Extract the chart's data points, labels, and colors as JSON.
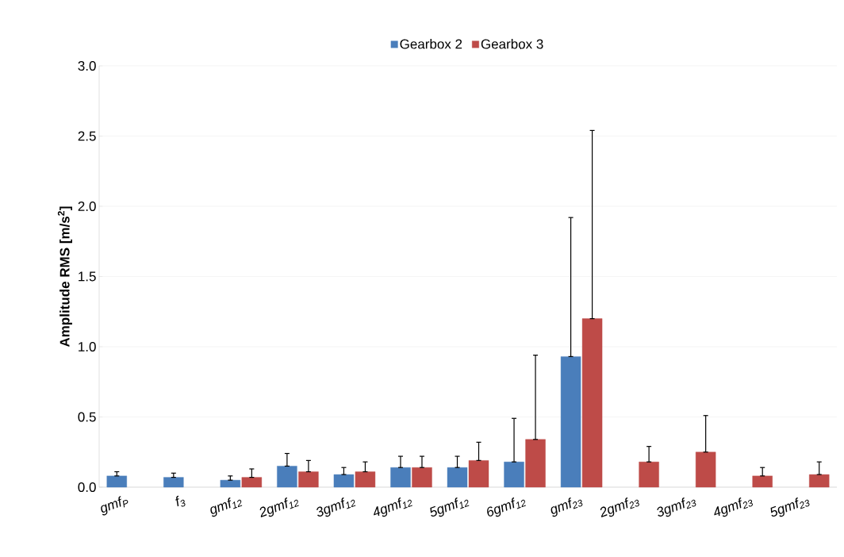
{
  "chart_data": {
    "type": "bar",
    "ylabel": "Amplitude RMS [m/s$^{2}$]",
    "categories": [
      "gmf$_{P}$",
      "f$_{3}$",
      "gmf$_{12}$",
      "2gmf$_{12}$",
      "3gmf$_{12}$",
      "4gmf$_{12}$",
      "5gmf$_{12}$",
      "6gmf$_{12}$",
      "gmf$_{23}$",
      "2gmf$_{23}$",
      "3gmf$_{23}$",
      "4gmf$_{23}$",
      "5gmf$_{23}$"
    ],
    "series": [
      {
        "name": "Gearbox 2",
        "color": "#4a7ebb",
        "values": [
          0.08,
          0.07,
          0.05,
          0.15,
          0.09,
          0.14,
          0.14,
          0.18,
          0.93,
          null,
          null,
          null,
          null
        ],
        "errors": [
          [
            0.08,
            0.11
          ],
          [
            0.07,
            0.1
          ],
          [
            0.05,
            0.08
          ],
          [
            0.15,
            0.24
          ],
          [
            0.09,
            0.14
          ],
          [
            0.14,
            0.22
          ],
          [
            0.14,
            0.22
          ],
          [
            0.18,
            0.49
          ],
          [
            0.93,
            1.92
          ],
          null,
          null,
          null,
          null
        ]
      },
      {
        "name": "Gearbox 3",
        "color": "#be4b48",
        "values": [
          null,
          null,
          0.07,
          0.11,
          0.11,
          0.14,
          0.19,
          0.34,
          1.2,
          0.18,
          0.25,
          0.08,
          0.09
        ],
        "errors": [
          null,
          null,
          [
            0.07,
            0.13
          ],
          [
            0.11,
            0.19
          ],
          [
            0.11,
            0.18
          ],
          [
            0.14,
            0.22
          ],
          [
            0.19,
            0.32
          ],
          [
            0.34,
            0.94
          ],
          [
            1.2,
            2.54
          ],
          [
            0.18,
            0.29
          ],
          [
            0.25,
            0.51
          ],
          [
            0.08,
            0.14
          ],
          [
            0.09,
            0.18
          ]
        ]
      }
    ],
    "ylim": [
      0,
      3.0
    ],
    "yticks": [
      {
        "value": 0,
        "label": "0.0"
      },
      {
        "value": 0.5,
        "label": "0.5"
      },
      {
        "value": 1.0,
        "label": "1.0"
      },
      {
        "value": 1.5,
        "label": "1.5"
      },
      {
        "value": 2.0,
        "label": "2.0"
      },
      {
        "value": 2.5,
        "label": "2.5"
      },
      {
        "value": 3.0,
        "label": "3.0"
      }
    ],
    "grid": "y",
    "legend": "top"
  }
}
